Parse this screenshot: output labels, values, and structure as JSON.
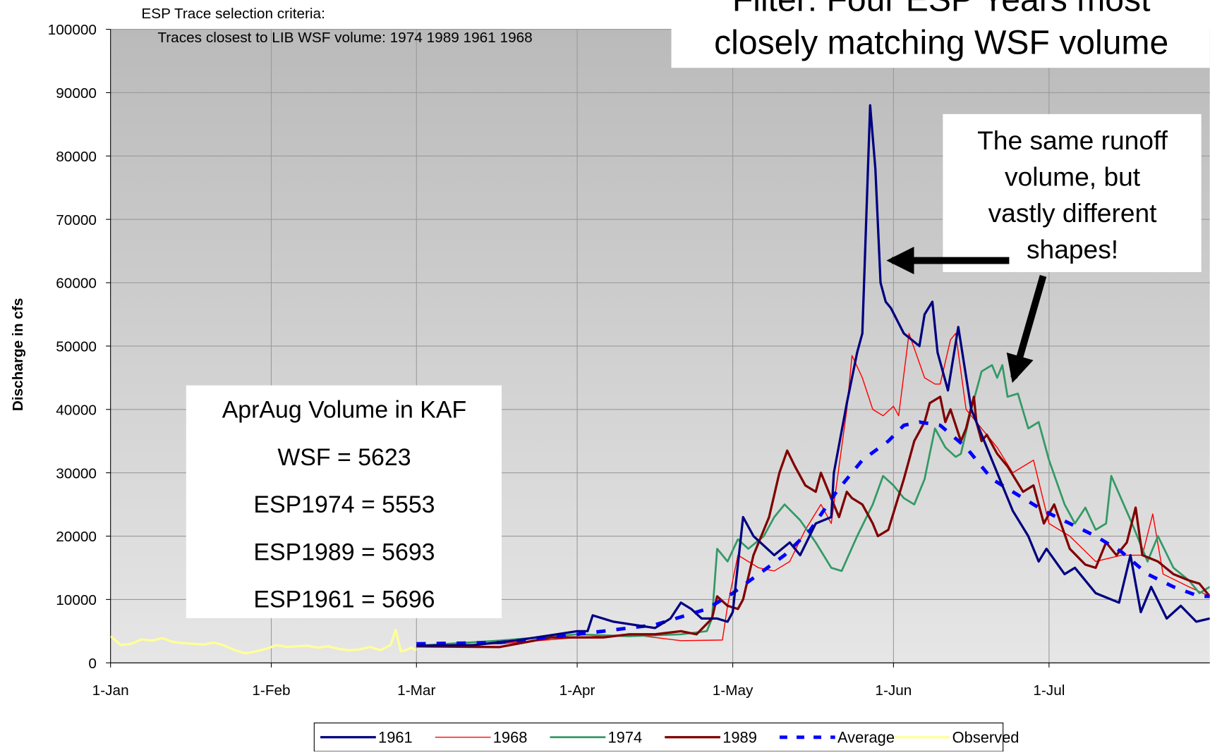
{
  "chart_data": {
    "type": "line",
    "title": [
      "Filter: Four ESP Years most",
      "closely matching WSF volume"
    ],
    "criteria": [
      "ESP Trace selection criteria:",
      "Traces closest to LIB WSF volume:  1974 1989 1961 1968"
    ],
    "y_label": "Discharge in cfs",
    "callout": [
      "The same runoff",
      "volume, but",
      "vastly different",
      "shapes!"
    ],
    "volume_box": [
      "AprAug Volume in KAF",
      "WSF = 5623",
      "ESP1974 = 5553",
      "ESP1989 = 5693",
      "ESP1961 = 5696"
    ],
    "xlim": [
      0,
      212
    ],
    "xticks": [
      {
        "value": 0,
        "label": "1-Jan"
      },
      {
        "value": 31,
        "label": "1-Feb"
      },
      {
        "value": 59,
        "label": "1-Mar"
      },
      {
        "value": 90,
        "label": "1-Apr"
      },
      {
        "value": 120,
        "label": "1-May"
      },
      {
        "value": 151,
        "label": "1-Jun"
      },
      {
        "value": 181,
        "label": "1-Jul"
      }
    ],
    "ylim": [
      0,
      100000
    ],
    "yticks": [
      0,
      10000,
      20000,
      30000,
      40000,
      50000,
      60000,
      70000,
      80000,
      90000,
      100000
    ],
    "grid": true,
    "legend": "bottom",
    "series": [
      {
        "name": "1961",
        "color": "#000080",
        "width": 3,
        "dashed": false,
        "x": [
          59,
          70,
          78,
          86,
          90,
          92,
          93,
          97,
          101,
          105,
          108,
          110,
          112,
          114,
          117,
          119,
          120,
          122,
          124,
          128,
          131,
          133,
          136,
          139,
          139.5,
          142,
          144,
          145,
          146.5,
          147.5,
          148.5,
          149.5,
          150.5,
          153,
          156,
          157,
          158.5,
          159.5,
          161.5,
          163.5,
          166,
          170,
          174,
          177,
          179,
          180.5,
          184,
          186,
          190,
          194.5,
          196.7,
          198.7,
          200.7,
          203.7,
          206.4,
          209.4,
          212
        ],
        "values": [
          2700,
          2800,
          3500,
          4500,
          5000,
          5000,
          7500,
          6500,
          6000,
          5500,
          7000,
          9500,
          8500,
          7000,
          7000,
          6500,
          8000,
          23000,
          20000,
          17000,
          19000,
          17000,
          22000,
          23000,
          30000,
          41000,
          49000,
          52000,
          88000,
          78000,
          60000,
          57000,
          56000,
          52000,
          50000,
          55000,
          57000,
          49000,
          43000,
          53000,
          40000,
          32000,
          24000,
          20000,
          16000,
          18000,
          14000,
          15000,
          11000,
          9500,
          17000,
          8000,
          12000,
          7000,
          9000,
          6500,
          7000
        ]
      },
      {
        "name": "1968",
        "color": "#ff0000",
        "width": 1.3,
        "dashed": false,
        "x": [
          59,
          75,
          90,
          100,
          110,
          118,
          119,
          121,
          125,
          128,
          131,
          134,
          137,
          139,
          142,
          143,
          145,
          147,
          149,
          151,
          152,
          154,
          157,
          159,
          160,
          162,
          163,
          165,
          168,
          171,
          174,
          178,
          181,
          185,
          190,
          195,
          199,
          201,
          203,
          208,
          212
        ],
        "values": [
          2700,
          3000,
          4000,
          4500,
          3500,
          3600,
          9000,
          17000,
          15000,
          14500,
          16000,
          21000,
          25000,
          22000,
          40000,
          48500,
          45000,
          40000,
          39000,
          40500,
          39000,
          52000,
          45000,
          44000,
          44000,
          51000,
          52000,
          40000,
          37000,
          34000,
          30000,
          32000,
          22000,
          20000,
          16000,
          17000,
          17000,
          23500,
          14000,
          12000,
          10500
        ]
      },
      {
        "name": "1974",
        "color": "#339966",
        "width": 2.5,
        "dashed": false,
        "x": [
          59,
          75,
          90,
          100,
          110,
          115,
          116,
          117,
          119,
          121,
          123,
          126,
          128,
          130,
          133,
          136,
          139,
          141,
          144,
          147,
          149,
          151,
          153,
          155,
          157,
          158,
          159,
          161,
          163,
          164,
          166,
          168,
          170,
          171,
          172,
          173,
          175,
          177,
          179,
          181,
          184,
          186,
          188,
          190,
          192,
          193,
          197,
          200,
          202,
          205,
          208,
          210,
          212
        ],
        "values": [
          2700,
          3500,
          4500,
          4200,
          4500,
          5000,
          7000,
          18000,
          16000,
          19500,
          18000,
          20000,
          23000,
          25000,
          22500,
          19000,
          15000,
          14500,
          20000,
          25000,
          29500,
          28000,
          26000,
          25000,
          29000,
          33000,
          37000,
          34000,
          32500,
          33000,
          40000,
          46000,
          47000,
          45000,
          47000,
          42000,
          42500,
          37000,
          38000,
          32000,
          25000,
          22000,
          24500,
          21000,
          22000,
          29500,
          22000,
          16000,
          20000,
          15000,
          13000,
          11000,
          12000
        ]
      },
      {
        "name": "1989",
        "color": "#800000",
        "width": 3,
        "dashed": false,
        "x": [
          59,
          75,
          85,
          95,
          100,
          105,
          110,
          113,
          116,
          117,
          119,
          121,
          122,
          124,
          127,
          129,
          130.5,
          132,
          134,
          136,
          137,
          139,
          140.5,
          142,
          143,
          145,
          147,
          148,
          150,
          153,
          155,
          157,
          158,
          160,
          161,
          162,
          164,
          165,
          166.5,
          167,
          168,
          169,
          171,
          173,
          176,
          178,
          180,
          182,
          185,
          188,
          190,
          192,
          194,
          196,
          197.7,
          199,
          202,
          205,
          208,
          210,
          212
        ],
        "values": [
          2600,
          2500,
          4000,
          4000,
          4500,
          4500,
          5000,
          4500,
          7000,
          10500,
          9000,
          8500,
          10000,
          17000,
          23000,
          30000,
          33500,
          31000,
          28000,
          27000,
          30000,
          26000,
          23000,
          27000,
          26000,
          25000,
          22000,
          20000,
          21000,
          29000,
          35000,
          38000,
          41000,
          42000,
          38000,
          40000,
          35000,
          37000,
          42000,
          38000,
          35000,
          36000,
          33000,
          31000,
          27000,
          28000,
          22000,
          25000,
          18000,
          15500,
          15000,
          19000,
          17000,
          19000,
          24500,
          17000,
          16000,
          14000,
          13000,
          12500,
          10500
        ]
      },
      {
        "name": "Average",
        "color": "#0000ff",
        "width": 4.5,
        "dashed": true,
        "x": [
          59,
          75,
          90,
          105,
          115,
          120,
          125,
          130,
          135,
          140,
          145,
          150,
          153,
          156,
          160,
          165,
          170,
          175,
          180,
          185,
          190,
          195,
          200,
          205,
          210,
          212
        ],
        "values": [
          3000,
          3200,
          4500,
          6000,
          8500,
          11000,
          14000,
          17000,
          21000,
          27000,
          32000,
          35000,
          37500,
          38000,
          37500,
          34000,
          29000,
          26500,
          24000,
          22000,
          20000,
          17500,
          14000,
          12000,
          10500,
          10500
        ]
      },
      {
        "name": "Observed",
        "color": "#ffff99",
        "width": 3,
        "dashed": false,
        "x": [
          0,
          2,
          4,
          6,
          8,
          10,
          12,
          14,
          16,
          18,
          20,
          22,
          24,
          26,
          28,
          30,
          32,
          34,
          36,
          38,
          40,
          42,
          44,
          46,
          48,
          50,
          52,
          54,
          55,
          56,
          57,
          58,
          59
        ],
        "values": [
          4200,
          2800,
          3000,
          3700,
          3500,
          3900,
          3300,
          3100,
          3000,
          2900,
          3200,
          2700,
          2000,
          1500,
          1800,
          2200,
          2800,
          2500,
          2600,
          2700,
          2400,
          2600,
          2200,
          2000,
          2100,
          2500,
          2000,
          2800,
          5200,
          1800,
          2000,
          2400,
          2000
        ]
      }
    ]
  }
}
